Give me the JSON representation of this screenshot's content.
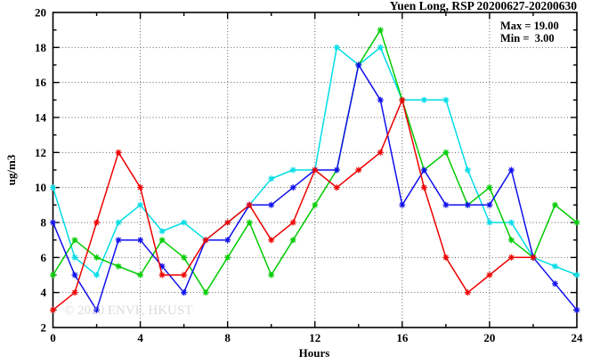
{
  "title": "Yuen Long, RSP 20200627-20200630",
  "legend": {
    "max_label": "Max = 19.00",
    "min_label": "Min =  3.00"
  },
  "watermark": "© 2020 ENVF, HKUST",
  "colors": {
    "axis": "#000000",
    "grid": "#606060",
    "background": "#ffffff"
  },
  "chart_data": {
    "type": "line",
    "title": "Yuen Long, RSP 20200627-20200630",
    "xlabel": "Hours",
    "ylabel": "ug/m3",
    "xlim": [
      0,
      24
    ],
    "ylim": [
      2,
      20
    ],
    "x_major_ticks": [
      0,
      4,
      8,
      12,
      16,
      20,
      24
    ],
    "x_minor_step": 2,
    "y_major_ticks": [
      2,
      4,
      6,
      8,
      10,
      12,
      14,
      16,
      18,
      20
    ],
    "y_minor_step": 1,
    "grid": "dotted lines at major ticks",
    "legend_position": "top-right inside",
    "max": 19.0,
    "min": 3.0,
    "marker": "asterisk",
    "series": [
      {
        "name": "cyan",
        "color": "#00dde6",
        "x": [
          0,
          1,
          2,
          3,
          4,
          5,
          6,
          7,
          8,
          9,
          10,
          11,
          12,
          13,
          14,
          15,
          16,
          17,
          18,
          19,
          20,
          21,
          22,
          23,
          24
        ],
        "values": [
          10,
          6,
          5,
          8,
          9,
          7.5,
          8,
          7,
          8,
          9,
          10.5,
          11,
          11,
          18,
          17,
          18,
          15,
          15,
          15,
          11,
          8,
          8,
          6,
          5.5,
          5
        ]
      },
      {
        "name": "green",
        "color": "#00cc00",
        "x": [
          0,
          1,
          2,
          3,
          4,
          5,
          6,
          7,
          8,
          9,
          10,
          11,
          12,
          13,
          14,
          15,
          16,
          17,
          18,
          19,
          20,
          21,
          22,
          23,
          24
        ],
        "values": [
          5,
          7,
          6,
          5.5,
          5,
          7,
          6,
          4,
          6,
          8,
          5,
          7,
          9,
          11,
          17,
          19,
          15,
          11,
          12,
          9,
          10,
          7,
          6,
          9,
          8
        ]
      },
      {
        "name": "blue",
        "color": "#0f0fee",
        "x": [
          0,
          1,
          2,
          3,
          4,
          5,
          6,
          7,
          8,
          9,
          10,
          11,
          12,
          13,
          14,
          15,
          16,
          17,
          18,
          19,
          20,
          21,
          22,
          23,
          24
        ],
        "values": [
          8,
          5,
          3,
          7,
          7,
          5.5,
          4,
          7,
          7,
          9,
          9,
          10,
          11,
          11,
          17,
          15,
          9,
          11,
          9,
          9,
          9,
          11,
          6,
          4.5,
          3
        ]
      },
      {
        "name": "red",
        "color": "#ee0000",
        "x": [
          0,
          1,
          2,
          3,
          4,
          5,
          6,
          7,
          8,
          9,
          10,
          11,
          12,
          13,
          14,
          15,
          16,
          17,
          18,
          19,
          20,
          21,
          22
        ],
        "values": [
          3,
          4,
          8,
          12,
          10,
          5,
          5,
          7,
          8,
          9,
          7,
          8,
          11,
          10,
          11,
          12,
          15,
          10,
          6,
          4,
          5,
          6,
          6
        ]
      }
    ]
  }
}
